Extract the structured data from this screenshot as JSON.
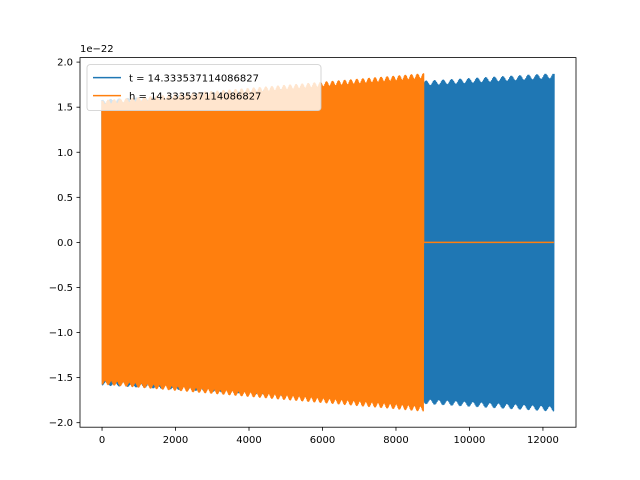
{
  "chart_data": {
    "type": "line",
    "title": "",
    "xlabel": "",
    "ylabel": "",
    "y_offset_label": "1e−22",
    "xlim": [
      -600,
      12900
    ],
    "ylim": [
      -2.05,
      2.05
    ],
    "xticks": [
      0,
      2000,
      4000,
      6000,
      8000,
      10000,
      12000
    ],
    "xtick_labels": [
      "0",
      "2000",
      "4000",
      "6000",
      "8000",
      "10000",
      "12000"
    ],
    "yticks": [
      -2.0,
      -1.5,
      -1.0,
      -0.5,
      0.0,
      0.5,
      1.0,
      1.5,
      2.0
    ],
    "ytick_labels": [
      "−2.0",
      "−1.5",
      "−1.0",
      "−0.5",
      "0.0",
      "0.5",
      "1.0",
      "1.5",
      "2.0"
    ],
    "grid": false,
    "legend_position": "upper-left",
    "series": [
      {
        "name": "t = 14.333537114086827",
        "color": "#1f77b4",
        "x_start": 0,
        "x_end": 12300,
        "amplitude_start": 1.58,
        "amplitude_end": 1.87,
        "tail_after": null
      },
      {
        "name": "h = 14.333537114086827",
        "color": "#ff7f0e",
        "x_start": 0,
        "x_end": 8750,
        "amplitude_start": 1.57,
        "amplitude_end": 1.87,
        "tail_after": {
          "x_end": 12300,
          "value": 0.0
        }
      }
    ]
  }
}
